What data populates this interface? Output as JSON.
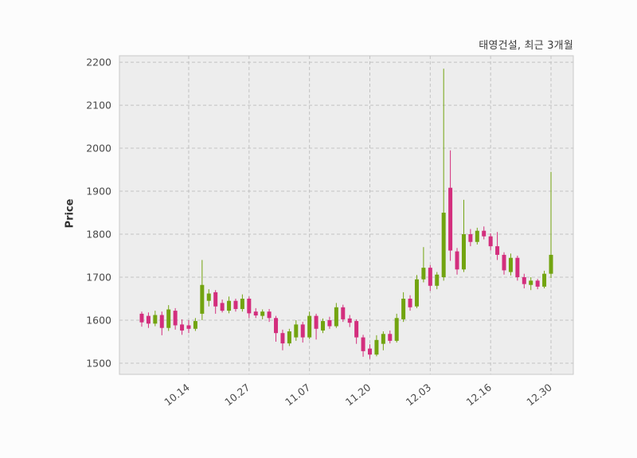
{
  "chart_data": {
    "type": "candlestick",
    "title": "태영건설, 최근 3개월",
    "ylabel": "Price",
    "y_ticks": [
      1500,
      1600,
      1700,
      1800,
      1900,
      2000,
      2100,
      2200
    ],
    "ylim": [
      1474,
      2215
    ],
    "x_ticks": [
      {
        "index": 7,
        "label": "10.14"
      },
      {
        "index": 16,
        "label": "10.27"
      },
      {
        "index": 25,
        "label": "11.07"
      },
      {
        "index": 34,
        "label": "11.20"
      },
      {
        "index": 43,
        "label": "12.03"
      },
      {
        "index": 52,
        "label": "12.16"
      },
      {
        "index": 61,
        "label": "12.30"
      }
    ],
    "legend_position": "none",
    "grid": "dashed",
    "up_color": "#72a410",
    "down_color": "#d32e7d",
    "plot_bg": "#ededed",
    "grid_color": "#c2c2c2",
    "border_color": "#c9c9c9",
    "tick_color": "#4a4a4a",
    "candles": [
      [
        1615,
        1620,
        1585,
        1595
      ],
      [
        1610,
        1618,
        1582,
        1592
      ],
      [
        1592,
        1622,
        1586,
        1612
      ],
      [
        1612,
        1620,
        1565,
        1582
      ],
      [
        1582,
        1635,
        1575,
        1625
      ],
      [
        1622,
        1628,
        1578,
        1588
      ],
      [
        1590,
        1602,
        1566,
        1576
      ],
      [
        1588,
        1600,
        1570,
        1580
      ],
      [
        1580,
        1605,
        1575,
        1598
      ],
      [
        1615,
        1740,
        1600,
        1682
      ],
      [
        1645,
        1672,
        1632,
        1662
      ],
      [
        1665,
        1670,
        1615,
        1632
      ],
      [
        1640,
        1648,
        1618,
        1622
      ],
      [
        1622,
        1655,
        1616,
        1645
      ],
      [
        1645,
        1650,
        1620,
        1626
      ],
      [
        1626,
        1660,
        1620,
        1650
      ],
      [
        1650,
        1655,
        1605,
        1616
      ],
      [
        1620,
        1628,
        1605,
        1611
      ],
      [
        1610,
        1625,
        1602,
        1620
      ],
      [
        1620,
        1626,
        1596,
        1605
      ],
      [
        1605,
        1610,
        1550,
        1570
      ],
      [
        1570,
        1578,
        1530,
        1546
      ],
      [
        1546,
        1580,
        1540,
        1574
      ],
      [
        1560,
        1600,
        1552,
        1590
      ],
      [
        1590,
        1596,
        1548,
        1560
      ],
      [
        1560,
        1620,
        1556,
        1610
      ],
      [
        1610,
        1615,
        1555,
        1580
      ],
      [
        1576,
        1604,
        1570,
        1598
      ],
      [
        1600,
        1608,
        1580,
        1586
      ],
      [
        1586,
        1640,
        1582,
        1630
      ],
      [
        1630,
        1636,
        1596,
        1602
      ],
      [
        1604,
        1612,
        1584,
        1594
      ],
      [
        1598,
        1602,
        1545,
        1560
      ],
      [
        1560,
        1566,
        1515,
        1528
      ],
      [
        1534,
        1544,
        1510,
        1520
      ],
      [
        1520,
        1565,
        1516,
        1554
      ],
      [
        1545,
        1574,
        1530,
        1568
      ],
      [
        1568,
        1576,
        1546,
        1552
      ],
      [
        1552,
        1615,
        1548,
        1605
      ],
      [
        1602,
        1665,
        1596,
        1650
      ],
      [
        1650,
        1658,
        1622,
        1630
      ],
      [
        1632,
        1705,
        1628,
        1695
      ],
      [
        1695,
        1770,
        1688,
        1722
      ],
      [
        1722,
        1728,
        1668,
        1680
      ],
      [
        1680,
        1712,
        1672,
        1706
      ],
      [
        1700,
        2185,
        1692,
        1850
      ],
      [
        1908,
        1995,
        1738,
        1762
      ],
      [
        1760,
        1768,
        1706,
        1718
      ],
      [
        1718,
        1880,
        1712,
        1800
      ],
      [
        1800,
        1812,
        1772,
        1782
      ],
      [
        1782,
        1815,
        1776,
        1808
      ],
      [
        1808,
        1818,
        1788,
        1795
      ],
      [
        1795,
        1802,
        1762,
        1772
      ],
      [
        1772,
        1805,
        1740,
        1752
      ],
      [
        1752,
        1758,
        1706,
        1716
      ],
      [
        1712,
        1755,
        1704,
        1745
      ],
      [
        1745,
        1750,
        1692,
        1700
      ],
      [
        1700,
        1708,
        1674,
        1684
      ],
      [
        1682,
        1700,
        1670,
        1692
      ],
      [
        1692,
        1696,
        1672,
        1678
      ],
      [
        1678,
        1715,
        1674,
        1708
      ],
      [
        1708,
        1945,
        1698,
        1752
      ]
    ]
  }
}
